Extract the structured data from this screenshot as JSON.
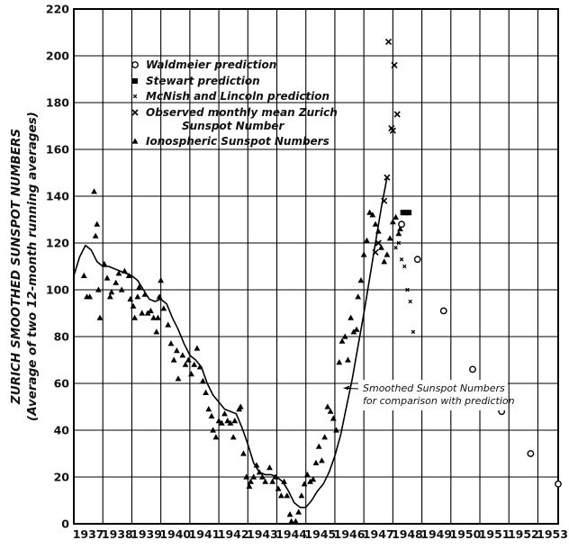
{
  "chart_data": {
    "type": "scatter",
    "ylabel": "ZURICH SMOOTHED SUNSPOT NUMBERS",
    "ylabel_sub": "(Average of two 12-month running averages)",
    "xlim": [
      1936.5,
      1953.2
    ],
    "ylim": [
      0,
      220
    ],
    "yticks": [
      "0",
      "20",
      "40",
      "60",
      "80",
      "100",
      "120",
      "140",
      "160",
      "180",
      "200",
      "220"
    ],
    "xticks": [
      {
        "label": "1937",
        "year": 1937
      },
      {
        "label": "1938",
        "year": 1938
      },
      {
        "label": "1939",
        "year": 1939
      },
      {
        "label": "1940",
        "year": 1940
      },
      {
        "label": "1941",
        "year": 1941
      },
      {
        "label": "1942",
        "year": 1942
      },
      {
        "label": "1943",
        "year": 1943
      },
      {
        "label": "1944",
        "year": 1944
      },
      {
        "label": "1945",
        "year": 1945
      },
      {
        "label": "1946",
        "year": 1946
      },
      {
        "label": "1947",
        "year": 1947
      },
      {
        "label": "1948",
        "year": 1948
      },
      {
        "label": "1949",
        "year": 1949
      },
      {
        "label": "1950",
        "year": 1950
      },
      {
        "label": "1951",
        "year": 1951
      },
      {
        "label": "1952",
        "year": 1952
      },
      {
        "label": "1953",
        "year": 1953
      }
    ],
    "grid": true,
    "legend_placement": "top-center",
    "legend": [
      {
        "label": "Waldmeier prediction",
        "marker": "circle"
      },
      {
        "label": "Stewart prediction",
        "marker": "square"
      },
      {
        "label": "McNish and Lincoln prediction",
        "marker": "small-x"
      },
      {
        "label": "Observed monthly mean Zurich",
        "label2": "Sunspot Number",
        "marker": "x"
      },
      {
        "label": "Ionospheric Sunspot Numbers",
        "marker": "triangle"
      }
    ],
    "annotation": {
      "line1": "Smoothed Sunspot Numbers",
      "line2": "for comparison with prediction",
      "x": 1947.0,
      "y": 60,
      "arrow_to": {
        "x": 1945.8,
        "y": 58
      }
    },
    "series": [
      {
        "name": "Smoothed Sunspot Numbers",
        "kind": "line",
        "points": [
          [
            1936.5,
            106
          ],
          [
            1936.7,
            114
          ],
          [
            1936.9,
            119
          ],
          [
            1937.1,
            117
          ],
          [
            1937.3,
            112
          ],
          [
            1937.5,
            110
          ],
          [
            1937.7,
            110
          ],
          [
            1937.9,
            109
          ],
          [
            1938.1,
            108
          ],
          [
            1938.3,
            107
          ],
          [
            1938.5,
            106
          ],
          [
            1938.7,
            104
          ],
          [
            1938.9,
            100
          ],
          [
            1939.1,
            96
          ],
          [
            1939.3,
            95
          ],
          [
            1939.5,
            96
          ],
          [
            1939.7,
            94
          ],
          [
            1939.9,
            88
          ],
          [
            1940.1,
            83
          ],
          [
            1940.3,
            77
          ],
          [
            1940.5,
            72
          ],
          [
            1940.7,
            70
          ],
          [
            1940.9,
            67
          ],
          [
            1941.1,
            60
          ],
          [
            1941.3,
            55
          ],
          [
            1941.5,
            52
          ],
          [
            1941.7,
            49
          ],
          [
            1941.9,
            48
          ],
          [
            1942.1,
            47
          ],
          [
            1942.3,
            41
          ],
          [
            1942.5,
            34
          ],
          [
            1942.7,
            26
          ],
          [
            1942.9,
            22
          ],
          [
            1943.1,
            21
          ],
          [
            1943.3,
            21
          ],
          [
            1943.5,
            20
          ],
          [
            1943.7,
            18
          ],
          [
            1943.9,
            14
          ],
          [
            1944.1,
            9
          ],
          [
            1944.3,
            7
          ],
          [
            1944.5,
            7
          ],
          [
            1944.7,
            10
          ],
          [
            1944.9,
            14
          ],
          [
            1945.1,
            17
          ],
          [
            1945.3,
            22
          ],
          [
            1945.5,
            29
          ],
          [
            1945.7,
            38
          ],
          [
            1945.9,
            50
          ],
          [
            1946.1,
            62
          ],
          [
            1946.3,
            76
          ],
          [
            1946.5,
            90
          ],
          [
            1946.7,
            105
          ],
          [
            1946.9,
            120
          ],
          [
            1947.1,
            135
          ],
          [
            1947.3,
            148
          ]
        ]
      },
      {
        "name": "Observed monthly mean Zurich Sunspot Number",
        "kind": "x",
        "points": [
          [
            1947.35,
            206
          ],
          [
            1947.55,
            196
          ],
          [
            1947.45,
            169
          ],
          [
            1947.5,
            168
          ],
          [
            1947.65,
            175
          ],
          [
            1947.3,
            148
          ],
          [
            1947.2,
            138
          ],
          [
            1946.9,
            116
          ],
          [
            1947.0,
            120
          ]
        ]
      },
      {
        "name": "Ionospheric Sunspot Numbers",
        "kind": "triangle",
        "points": [
          [
            1936.85,
            106
          ],
          [
            1936.95,
            97
          ],
          [
            1937.05,
            97
          ],
          [
            1937.2,
            142
          ],
          [
            1937.3,
            128
          ],
          [
            1937.25,
            123
          ],
          [
            1937.35,
            100
          ],
          [
            1937.4,
            88
          ],
          [
            1937.55,
            111
          ],
          [
            1937.65,
            105
          ],
          [
            1937.75,
            97
          ],
          [
            1937.8,
            99
          ],
          [
            1937.95,
            103
          ],
          [
            1938.05,
            107
          ],
          [
            1938.15,
            100
          ],
          [
            1938.25,
            108
          ],
          [
            1938.4,
            106
          ],
          [
            1938.45,
            96
          ],
          [
            1938.55,
            93
          ],
          [
            1938.6,
            88
          ],
          [
            1938.7,
            97
          ],
          [
            1938.75,
            101
          ],
          [
            1938.85,
            90
          ],
          [
            1938.95,
            98
          ],
          [
            1939.05,
            90
          ],
          [
            1939.15,
            91
          ],
          [
            1939.25,
            88
          ],
          [
            1939.35,
            82
          ],
          [
            1939.4,
            88
          ],
          [
            1939.45,
            97
          ],
          [
            1939.5,
            104
          ],
          [
            1939.6,
            92
          ],
          [
            1939.75,
            85
          ],
          [
            1939.85,
            77
          ],
          [
            1939.95,
            70
          ],
          [
            1940.05,
            74
          ],
          [
            1940.1,
            62
          ],
          [
            1940.25,
            72
          ],
          [
            1940.35,
            68
          ],
          [
            1940.45,
            70
          ],
          [
            1940.55,
            64
          ],
          [
            1940.65,
            68
          ],
          [
            1940.75,
            75
          ],
          [
            1940.85,
            67
          ],
          [
            1940.95,
            61
          ],
          [
            1941.05,
            56
          ],
          [
            1941.15,
            49
          ],
          [
            1941.25,
            46
          ],
          [
            1941.3,
            40
          ],
          [
            1941.4,
            37
          ],
          [
            1941.5,
            44
          ],
          [
            1941.6,
            43
          ],
          [
            1941.7,
            47
          ],
          [
            1941.8,
            44
          ],
          [
            1941.9,
            43
          ],
          [
            1942.0,
            37
          ],
          [
            1942.05,
            44
          ],
          [
            1942.2,
            49
          ],
          [
            1942.25,
            50
          ],
          [
            1942.35,
            30
          ],
          [
            1942.45,
            20
          ],
          [
            1942.55,
            16
          ],
          [
            1942.6,
            18
          ],
          [
            1942.7,
            20
          ],
          [
            1942.8,
            25
          ],
          [
            1942.9,
            22
          ],
          [
            1943.0,
            20
          ],
          [
            1943.1,
            18
          ],
          [
            1943.25,
            24
          ],
          [
            1943.35,
            18
          ],
          [
            1943.45,
            20
          ],
          [
            1943.55,
            15
          ],
          [
            1943.65,
            12
          ],
          [
            1943.75,
            18
          ],
          [
            1943.85,
            12
          ],
          [
            1943.95,
            4
          ],
          [
            1944.0,
            1
          ],
          [
            1944.15,
            1
          ],
          [
            1944.25,
            5
          ],
          [
            1944.35,
            12
          ],
          [
            1944.45,
            17
          ],
          [
            1944.55,
            21
          ],
          [
            1944.65,
            18
          ],
          [
            1944.75,
            19
          ],
          [
            1944.85,
            26
          ],
          [
            1944.95,
            33
          ],
          [
            1945.05,
            27
          ],
          [
            1945.15,
            37
          ],
          [
            1945.25,
            50
          ],
          [
            1945.35,
            48
          ],
          [
            1945.45,
            45
          ],
          [
            1945.55,
            40
          ],
          [
            1945.65,
            69
          ],
          [
            1945.75,
            78
          ],
          [
            1945.85,
            80
          ],
          [
            1945.95,
            70
          ],
          [
            1946.05,
            88
          ],
          [
            1946.15,
            82
          ],
          [
            1946.25,
            83
          ],
          [
            1946.3,
            97
          ],
          [
            1946.4,
            104
          ],
          [
            1946.5,
            115
          ],
          [
            1946.6,
            121
          ],
          [
            1946.7,
            133
          ],
          [
            1946.8,
            132
          ],
          [
            1946.9,
            128
          ],
          [
            1947.0,
            125
          ],
          [
            1947.1,
            118
          ],
          [
            1947.2,
            112
          ],
          [
            1947.3,
            115
          ],
          [
            1947.4,
            122
          ],
          [
            1947.5,
            129
          ],
          [
            1947.6,
            131
          ],
          [
            1947.7,
            124
          ],
          [
            1947.75,
            126
          ]
        ]
      },
      {
        "name": "Stewart prediction",
        "kind": "square",
        "points": [
          [
            1947.85,
            133
          ],
          [
            1947.95,
            133
          ],
          [
            1948.05,
            133
          ]
        ]
      },
      {
        "name": "McNish and Lincoln prediction",
        "kind": "small-x",
        "points": [
          [
            1947.6,
            118
          ],
          [
            1947.7,
            120
          ],
          [
            1947.8,
            113
          ],
          [
            1947.9,
            110
          ],
          [
            1948.0,
            100
          ],
          [
            1948.1,
            95
          ],
          [
            1948.2,
            82
          ]
        ]
      },
      {
        "name": "Waldmeier prediction",
        "kind": "circle",
        "points": [
          [
            1947.8,
            128
          ],
          [
            1948.35,
            113
          ],
          [
            1949.25,
            91
          ],
          [
            1950.25,
            66
          ],
          [
            1951.25,
            48
          ],
          [
            1952.25,
            30
          ],
          [
            1953.2,
            17
          ]
        ]
      }
    ]
  }
}
